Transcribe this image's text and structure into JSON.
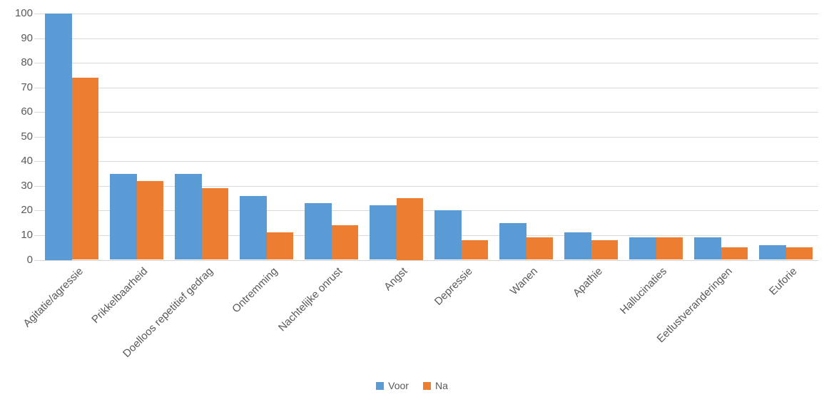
{
  "chart": {
    "background": "#ffffff",
    "text_color": "#595959",
    "gridline_color": "#d9d9d9"
  },
  "chart_data": {
    "type": "bar",
    "title": "",
    "xlabel": "",
    "ylabel": "",
    "categories": [
      "Agitatie/agressie",
      "Prikkelbaarheid",
      "Doelloos repetitief gedrag",
      "Ontremming",
      "Nachtelijke onrust",
      "Angst",
      "Depressie",
      "Wanen",
      "Apathie",
      "Hallucinaties",
      "Eetlustveranderingen",
      "Euforie"
    ],
    "series": [
      {
        "name": "Voor",
        "color": "#5B9BD5",
        "values": [
          100,
          35,
          35,
          26,
          23,
          22,
          20,
          15,
          11,
          9,
          9,
          6
        ]
      },
      {
        "name": "Na",
        "color": "#ED7D31",
        "values": [
          74,
          32,
          29,
          11,
          14,
          25,
          8,
          9,
          8,
          9,
          5,
          5
        ]
      }
    ],
    "ylim": [
      0,
      100
    ],
    "ytick_step": 10,
    "grid": true,
    "legend_position": "bottom"
  }
}
